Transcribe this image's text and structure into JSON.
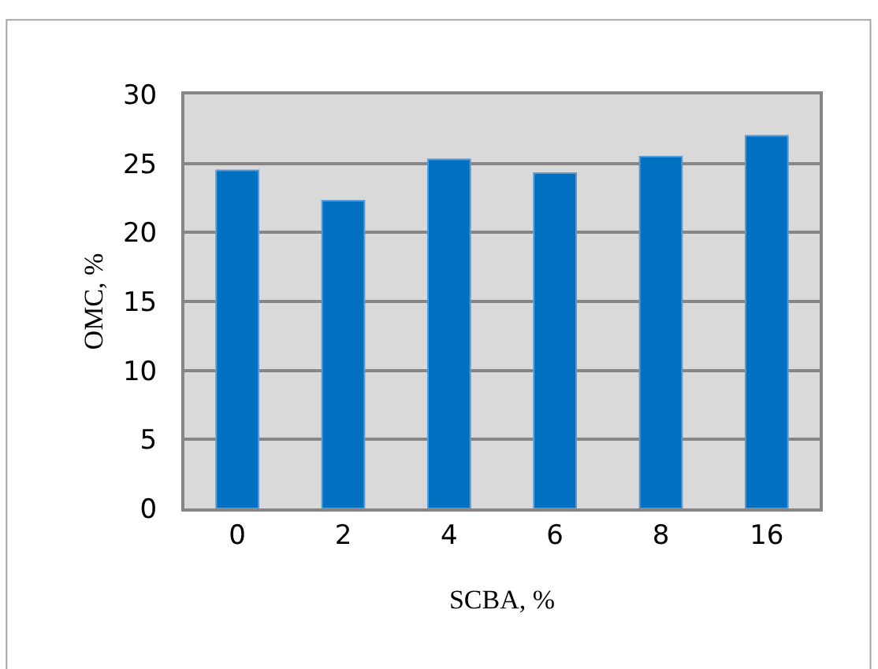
{
  "chart_data": {
    "type": "bar",
    "xlabel": "SCBA, %",
    "ylabel": "OMC, %",
    "categories": [
      "0",
      "2",
      "4",
      "6",
      "8",
      "16"
    ],
    "values": [
      24.5,
      22.3,
      25.3,
      24.3,
      25.5,
      27.0
    ],
    "color": "#0070c0",
    "ylim": [
      0,
      30
    ],
    "yticks": [
      0,
      5,
      10,
      15,
      20,
      25,
      30
    ],
    "grid": "y",
    "legend": false
  }
}
